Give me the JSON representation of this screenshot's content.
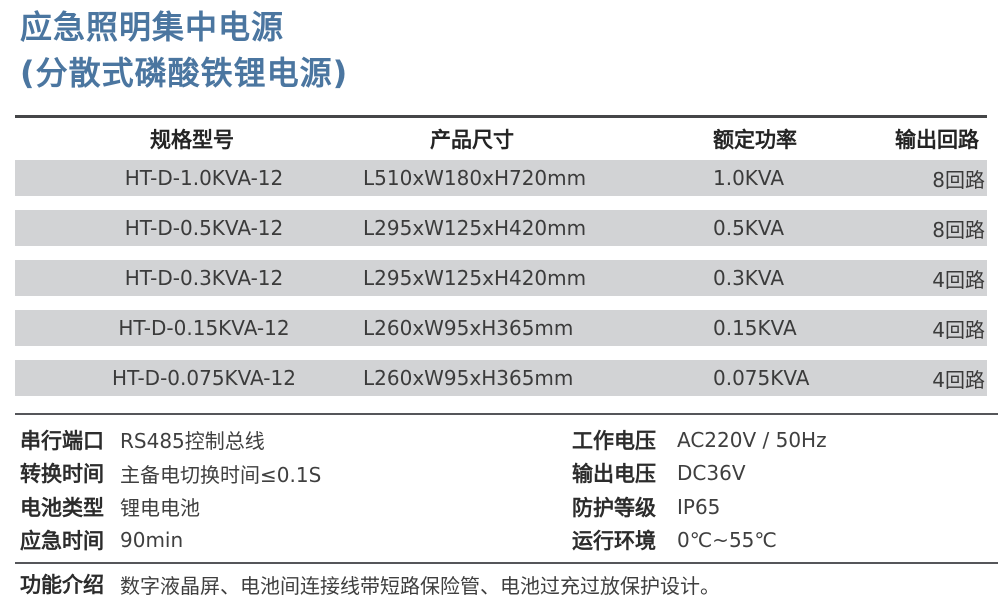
{
  "title": {
    "line1": "应急照明集中电源",
    "line2": "(分散式磷酸铁锂电源)"
  },
  "table": {
    "headers": [
      "规格型号",
      "产品尺寸",
      "额定功率",
      "输出回路"
    ],
    "rows": [
      [
        "HT-D-1.0KVA-12",
        "L510xW180xH720mm",
        "1.0KVA",
        "8回路"
      ],
      [
        "HT-D-0.5KVA-12",
        "L295xW125xH420mm",
        "0.5KVA",
        "8回路"
      ],
      [
        "HT-D-0.3KVA-12",
        "L295xW125xH420mm",
        "0.3KVA",
        "4回路"
      ],
      [
        "HT-D-0.15KVA-12",
        "L260xW95xH365mm",
        "0.15KVA",
        "4回路"
      ],
      [
        "HT-D-0.075KVA-12",
        "L260xW95xH365mm",
        "0.075KVA",
        "4回路"
      ]
    ]
  },
  "specs": {
    "left": [
      {
        "label": "串行端口",
        "value": "RS485控制总线"
      },
      {
        "label": "转换时间",
        "value": "主备电切换时间≤0.1S"
      },
      {
        "label": "电池类型",
        "value": "锂电电池"
      },
      {
        "label": "应急时间",
        "value": "90min"
      }
    ],
    "right": [
      {
        "label": "工作电压",
        "value": "AC220V / 50Hz"
      },
      {
        "label": "输出电压",
        "value": "DC36V"
      },
      {
        "label": "防护等级",
        "value": "IP65"
      },
      {
        "label": "运行环境",
        "value": "0℃~55℃"
      }
    ],
    "footer": {
      "label": "功能介绍",
      "value": "数字液晶屏、电池间连接线带短路保险管、电池过充过放保护设计。"
    }
  },
  "colors": {
    "title_accent": "#4b76a0",
    "row_background": "#d2d3d5",
    "rule_line": "#55565a"
  }
}
